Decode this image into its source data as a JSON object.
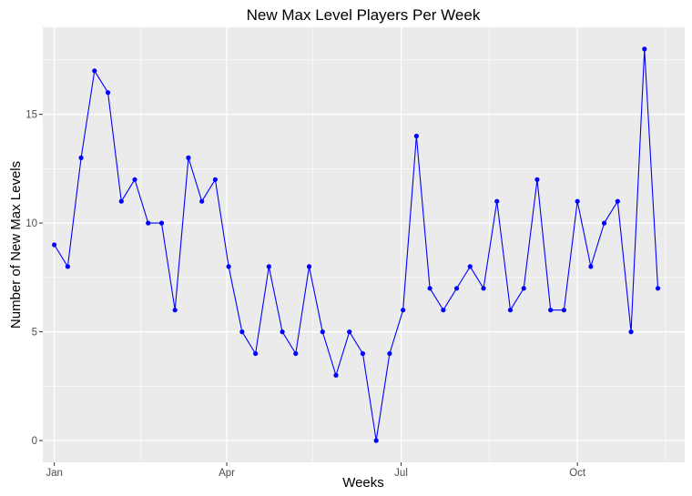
{
  "chart_data": {
    "type": "line",
    "title": "New Max Level Players Per Week",
    "xlabel": "Weeks",
    "ylabel": "Number of New Max Levels",
    "x_axis": {
      "scale": "date",
      "range": [
        "2016-12-26",
        "2017-11-26"
      ],
      "tick_dates": [
        "2017-01-01",
        "2017-04-01",
        "2017-07-01",
        "2017-10-01"
      ],
      "tick_labels": [
        "Jan",
        "Apr",
        "Jul",
        "Oct"
      ],
      "minor_dates": [
        "2017-02-15",
        "2017-05-16",
        "2017-08-16",
        "2017-11-16"
      ]
    },
    "y_axis": {
      "range": [
        -1,
        19
      ],
      "ticks": [
        0,
        5,
        10,
        15
      ],
      "minor_ticks": [
        2.5,
        7.5,
        12.5,
        17.5
      ]
    },
    "grid": true,
    "background": "#ebebeb",
    "grid_color": "#ffffff",
    "line_color": "#0000ff",
    "point_color": "#0000ff",
    "series": [
      {
        "x": [
          "2017-01-01",
          "2017-01-08",
          "2017-01-15",
          "2017-01-22",
          "2017-01-29",
          "2017-02-05",
          "2017-02-12",
          "2017-02-19",
          "2017-02-26",
          "2017-03-05",
          "2017-03-12",
          "2017-03-19",
          "2017-03-26",
          "2017-04-02",
          "2017-04-09",
          "2017-04-16",
          "2017-04-23",
          "2017-04-30",
          "2017-05-07",
          "2017-05-14",
          "2017-05-21",
          "2017-05-28",
          "2017-06-04",
          "2017-06-11",
          "2017-06-18",
          "2017-06-25",
          "2017-07-02",
          "2017-07-09",
          "2017-07-16",
          "2017-07-23",
          "2017-07-30",
          "2017-08-06",
          "2017-08-13",
          "2017-08-20",
          "2017-08-27",
          "2017-09-03",
          "2017-09-10",
          "2017-09-17",
          "2017-09-24",
          "2017-10-01",
          "2017-10-08",
          "2017-10-15",
          "2017-10-22",
          "2017-10-29",
          "2017-11-05",
          "2017-11-12"
        ],
        "values": [
          9,
          8,
          13,
          17,
          16,
          11,
          12,
          10,
          10,
          6,
          13,
          11,
          12,
          8,
          5,
          4,
          8,
          5,
          4,
          8,
          5,
          3,
          5,
          4,
          0,
          4,
          6,
          14,
          7,
          6,
          7,
          8,
          7,
          11,
          6,
          7,
          12,
          6,
          6,
          11,
          8,
          10,
          11,
          5,
          18,
          7
        ]
      }
    ]
  }
}
